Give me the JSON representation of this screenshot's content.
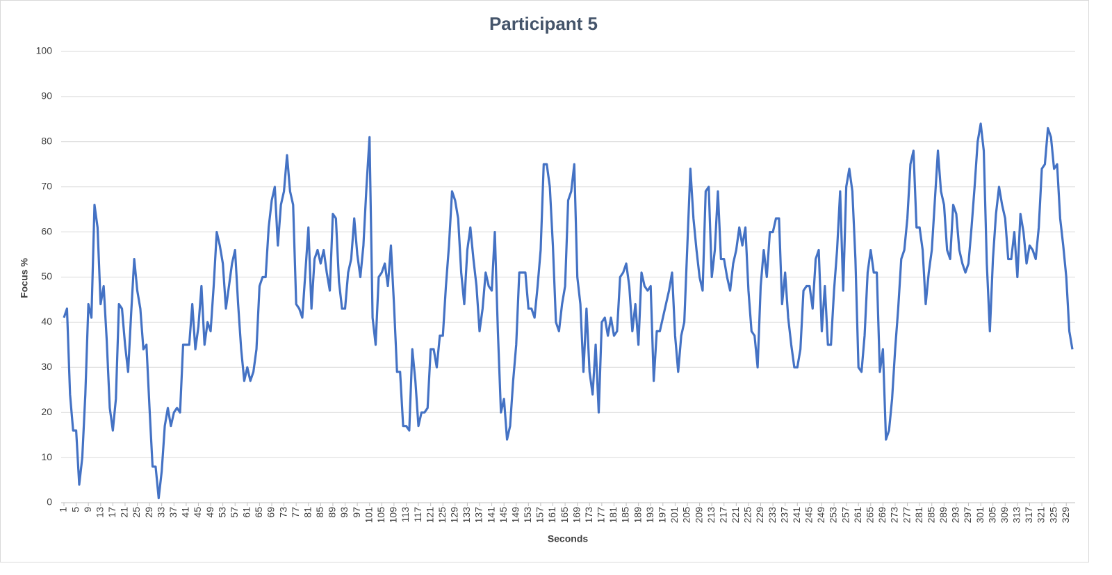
{
  "chart_data": {
    "type": "line",
    "title": "Participant 5",
    "xlabel": "Seconds",
    "ylabel": "Focus %",
    "x": [
      1,
      2,
      3,
      4,
      5,
      6,
      7,
      8,
      9,
      10,
      11,
      12,
      13,
      14,
      15,
      16,
      17,
      18,
      19,
      20,
      21,
      22,
      23,
      24,
      25,
      26,
      27,
      28,
      29,
      30,
      31,
      32,
      33,
      34,
      35,
      36,
      37,
      38,
      39,
      40,
      41,
      42,
      43,
      44,
      45,
      46,
      47,
      48,
      49,
      50,
      51,
      52,
      53,
      54,
      55,
      56,
      57,
      58,
      59,
      60,
      61,
      62,
      63,
      64,
      65,
      66,
      67,
      68,
      69,
      70,
      71,
      72,
      73,
      74,
      75,
      76,
      77,
      78,
      79,
      80,
      81,
      82,
      83,
      84,
      85,
      86,
      87,
      88,
      89,
      90,
      91,
      92,
      93,
      94,
      95,
      96,
      97,
      98,
      99,
      100,
      101,
      102,
      103,
      104,
      105,
      106,
      107,
      108,
      109,
      110,
      111,
      112,
      113,
      114,
      115,
      116,
      117,
      118,
      119,
      120,
      121,
      122,
      123,
      124,
      125,
      126,
      127,
      128,
      129,
      130,
      131,
      132,
      133,
      134,
      135,
      136,
      137,
      138,
      139,
      140,
      141,
      142,
      143,
      144,
      145,
      146,
      147,
      148,
      149,
      150,
      151,
      152,
      153,
      154,
      155,
      156,
      157,
      158,
      159,
      160,
      161,
      162,
      163,
      164,
      165,
      166,
      167,
      168,
      169,
      170,
      171,
      172,
      173,
      174,
      175,
      176,
      177,
      178,
      179,
      180,
      181,
      182,
      183,
      184,
      185,
      186,
      187,
      188,
      189,
      190,
      191,
      192,
      193,
      194,
      195,
      196,
      197,
      198,
      199,
      200,
      201,
      202,
      203,
      204,
      205,
      206,
      207,
      208,
      209,
      210,
      211,
      212,
      213,
      214,
      215,
      216,
      217,
      218,
      219,
      220,
      221,
      222,
      223,
      224,
      225,
      226,
      227,
      228,
      229,
      230,
      231,
      232,
      233,
      234,
      235,
      236,
      237,
      238,
      239,
      240,
      241,
      242,
      243,
      244,
      245,
      246,
      247,
      248,
      249,
      250,
      251,
      252,
      253,
      254,
      255,
      256,
      257,
      258,
      259,
      260,
      261,
      262,
      263,
      264,
      265,
      266,
      267,
      268,
      269,
      270,
      271,
      272,
      273,
      274,
      275,
      276,
      277,
      278,
      279,
      280,
      281,
      282,
      283,
      284,
      285,
      286,
      287,
      288,
      289,
      290,
      291,
      292,
      293,
      294,
      295,
      296,
      297,
      298,
      299,
      300,
      301,
      302,
      303,
      304,
      305,
      306,
      307,
      308,
      309,
      310,
      311,
      312,
      313,
      314,
      315,
      316,
      317,
      318,
      319,
      320,
      321,
      322,
      323,
      324,
      325,
      326,
      327,
      328,
      329,
      330,
      331
    ],
    "series": [
      {
        "name": "Focus",
        "color": "#4472c4",
        "values": [
          41,
          43,
          24,
          16,
          16,
          4,
          10,
          24,
          44,
          41,
          66,
          61,
          44,
          48,
          36,
          21,
          16,
          23,
          44,
          43,
          35,
          29,
          42,
          54,
          47,
          43,
          34,
          35,
          21,
          8,
          8,
          1,
          7,
          17,
          21,
          17,
          20,
          21,
          20,
          35,
          35,
          35,
          44,
          34,
          39,
          48,
          35,
          40,
          38,
          48,
          60,
          57,
          53,
          43,
          48,
          53,
          56,
          44,
          34,
          27,
          30,
          27,
          29,
          34,
          48,
          50,
          50,
          61,
          67,
          70,
          57,
          66,
          69,
          77,
          69,
          66,
          44,
          43,
          41,
          51,
          61,
          43,
          54,
          56,
          53,
          56,
          51,
          47,
          64,
          63,
          49,
          43,
          43,
          51,
          54,
          63,
          55,
          50,
          57,
          70,
          81,
          41,
          35,
          50,
          51,
          53,
          48,
          57,
          44,
          29,
          29,
          17,
          17,
          16,
          34,
          27,
          17,
          20,
          20,
          21,
          34,
          34,
          30,
          37,
          37,
          48,
          57,
          69,
          67,
          63,
          51,
          44,
          56,
          61,
          54,
          48,
          38,
          43,
          51,
          48,
          47,
          60,
          38,
          20,
          23,
          14,
          17,
          27,
          35,
          51,
          51,
          51,
          43,
          43,
          41,
          48,
          56,
          75,
          75,
          70,
          57,
          40,
          38,
          44,
          48,
          67,
          69,
          75,
          50,
          44,
          29,
          43,
          29,
          24,
          35,
          20,
          40,
          41,
          37,
          41,
          37,
          38,
          50,
          51,
          53,
          48,
          38,
          44,
          35,
          51,
          48,
          47,
          48,
          27,
          38,
          38,
          41,
          44,
          47,
          51,
          37,
          29,
          37,
          40,
          57,
          74,
          63,
          56,
          50,
          47,
          69,
          70,
          50,
          56,
          69,
          54,
          54,
          50,
          47,
          53,
          56,
          61,
          57,
          61,
          47,
          38,
          37,
          30,
          48,
          56,
          50,
          60,
          60,
          63,
          63,
          44,
          51,
          41,
          35,
          30,
          30,
          34,
          47,
          48,
          48,
          43,
          54,
          56,
          38,
          48,
          35,
          35,
          47,
          56,
          69,
          47,
          70,
          74,
          69,
          54,
          30,
          29,
          37,
          51,
          56,
          51,
          51,
          29,
          34,
          14,
          16,
          23,
          34,
          43,
          54,
          56,
          63,
          75,
          78,
          61,
          61,
          56,
          44,
          51,
          56,
          67,
          78,
          69,
          66,
          56,
          54,
          66,
          64,
          56,
          53,
          51,
          53,
          61,
          70,
          80,
          84,
          78,
          53,
          38,
          54,
          64,
          70,
          66,
          63,
          54,
          54,
          60,
          50,
          64,
          60,
          53,
          57,
          56,
          54,
          61,
          74,
          75,
          83,
          81,
          74,
          75,
          63,
          57,
          50,
          38,
          34
        ]
      }
    ],
    "xlim": [
      1,
      331
    ],
    "xticks": [
      1,
      5,
      9,
      13,
      17,
      21,
      25,
      29,
      33,
      37,
      41,
      45,
      49,
      53,
      57,
      61,
      65,
      69,
      73,
      77,
      81,
      85,
      89,
      93,
      97,
      101,
      105,
      109,
      113,
      117,
      121,
      125,
      129,
      133,
      137,
      141,
      145,
      149,
      153,
      157,
      161,
      165,
      169,
      173,
      177,
      181,
      185,
      189,
      193,
      197,
      201,
      205,
      209,
      213,
      217,
      221,
      225,
      229,
      233,
      237,
      241,
      245,
      249,
      253,
      257,
      261,
      265,
      269,
      273,
      277,
      281,
      285,
      289,
      293,
      297,
      301,
      305,
      309,
      313,
      317,
      321,
      325,
      329
    ],
    "ylim": [
      0,
      100
    ],
    "yticks": [
      0,
      10,
      20,
      30,
      40,
      50,
      60,
      70,
      80,
      90,
      100
    ],
    "grid": true
  }
}
